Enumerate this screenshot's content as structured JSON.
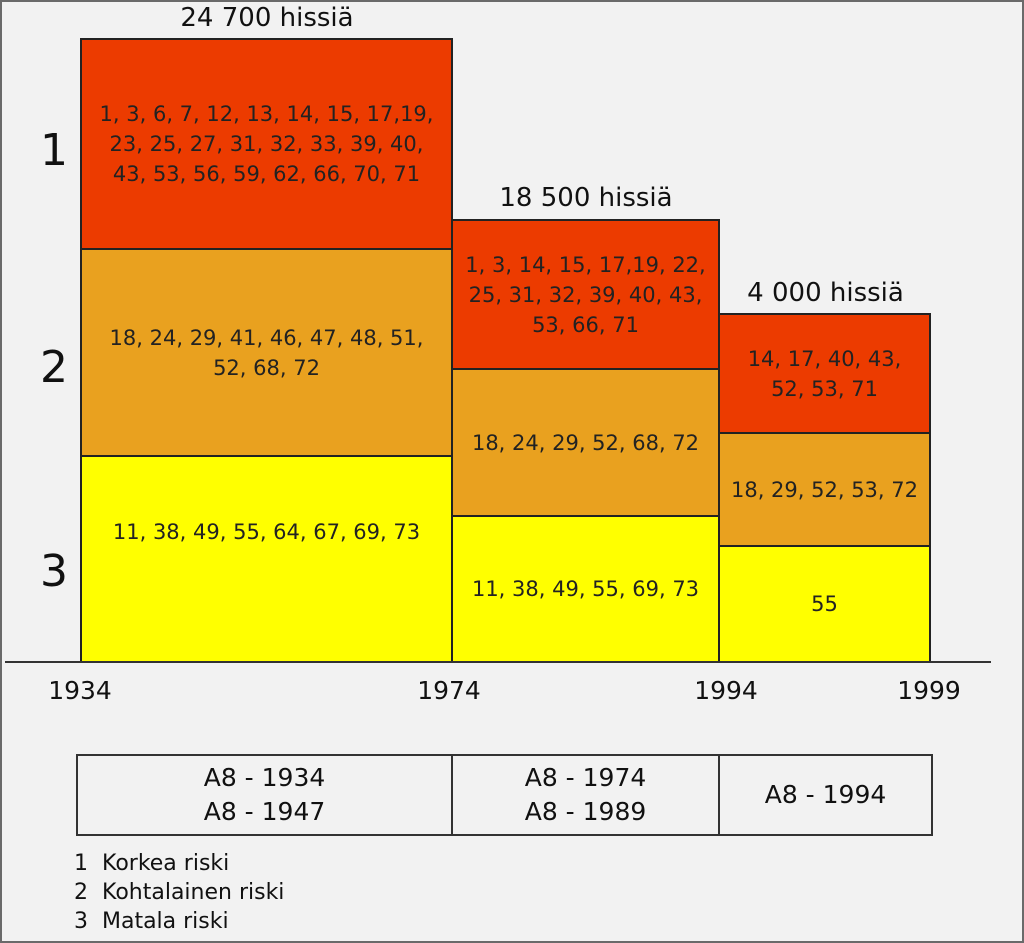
{
  "totals": [
    "24 700 hissiä",
    "18 500 hissiä",
    "4 000 hissiä"
  ],
  "levels": [
    "1",
    "2",
    "3"
  ],
  "years": [
    "1934",
    "1974",
    "1994",
    "1999"
  ],
  "blocks": {
    "p1_r1": "1, 3, 6, 7, 12, 13, 14, 15, 17,19,\n23, 25, 27, 31, 32, 33, 39, 40,\n43, 53, 56, 59, 62, 66, 70, 71",
    "p1_r2": "18, 24, 29, 41, 46, 47, 48, 51,\n52, 68, 72",
    "p1_r3": "11, 38, 49, 55, 64, 67, 69, 73",
    "p2_r1": "1, 3, 14, 15, 17,19, 22,\n25, 31, 32, 39, 40, 43,\n53, 66, 71",
    "p2_r2": "18, 24, 29, 52, 68, 72",
    "p2_r3": "11, 38, 49, 55, 69, 73",
    "p3_r1": "14, 17, 40, 43,\n52, 53, 71",
    "p3_r2": "18, 29, 52, 53, 72",
    "p3_r3": "55"
  },
  "standards": [
    "A8 - 1934\nA8 - 1947",
    "A8 - 1974\nA8 - 1989",
    "A8 - 1994"
  ],
  "legend": [
    "1  Korkea riski",
    "2  Kohtalainen riski",
    "3  Matala riski"
  ],
  "colors": {
    "high": "#ec3b00",
    "medium": "#e9a11f",
    "low": "#ffff00",
    "background": "#f2f2f2"
  }
}
